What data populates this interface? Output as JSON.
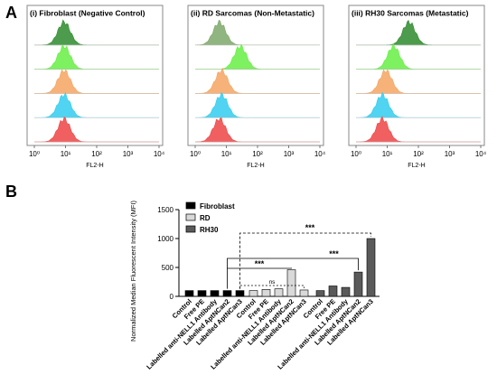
{
  "panels": {
    "a_letter": "A",
    "b_letter": "B"
  },
  "chart_data": [
    {
      "type": "histogram",
      "title": "(i) Fibroblast (Negative Control)",
      "xlabel": "FL2-H",
      "x_scale": "log",
      "xlim": [
        1,
        10000
      ],
      "x_tick_labels": [
        "10⁰",
        "10¹",
        "10²",
        "10³",
        "10⁴"
      ],
      "series": [
        {
          "color": "#2e8b2e",
          "peak": 9
        },
        {
          "color": "#66ee44",
          "peak": 9
        },
        {
          "color": "#f4a460",
          "peak": 9
        },
        {
          "color": "#33ccee",
          "peak": 9
        },
        {
          "color": "#ee4444",
          "peak": 9
        }
      ]
    },
    {
      "type": "histogram",
      "title": "(ii) RD Sarcomas (Non-Metastatic)",
      "xlabel": "FL2-H",
      "x_scale": "log",
      "xlim": [
        1,
        10000
      ],
      "x_tick_labels": [
        "10⁰",
        "10¹",
        "10²",
        "10³",
        "10⁴"
      ],
      "series": [
        {
          "color": "#7ea86a",
          "peak": 6
        },
        {
          "color": "#66ee44",
          "peak": 28
        },
        {
          "color": "#f4a460",
          "peak": 7
        },
        {
          "color": "#33ccee",
          "peak": 7
        },
        {
          "color": "#ee4444",
          "peak": 6
        }
      ]
    },
    {
      "type": "histogram",
      "title": "(iii) RH30 Sarcomas (Metastatic)",
      "xlabel": "FL2-H",
      "x_scale": "log",
      "xlim": [
        1,
        10000
      ],
      "x_tick_labels": [
        "10⁰",
        "10¹",
        "10²",
        "10³",
        "10⁴"
      ],
      "series": [
        {
          "color": "#2e8b2e",
          "peak": 50
        },
        {
          "color": "#66ee44",
          "peak": 16
        },
        {
          "color": "#f4a460",
          "peak": 9
        },
        {
          "color": "#33ccee",
          "peak": 7
        },
        {
          "color": "#ee4444",
          "peak": 7
        }
      ]
    },
    {
      "type": "bar",
      "ylabel": "Normalized Median Fluorescent Intensity (MFI)",
      "ylim": [
        0,
        1500
      ],
      "y_ticks": [
        0,
        500,
        1000,
        1500
      ],
      "categories": [
        "Control",
        "Free PE",
        "Labelled anti-NELL1 Antibody",
        "Labelled AptNCan2",
        "Labelled AptNCan3"
      ],
      "series": [
        {
          "name": "Fibroblast",
          "color": "#000000",
          "values": [
            100,
            100,
            100,
            100,
            100
          ]
        },
        {
          "name": "RD",
          "color": "#d9d9d9",
          "values": [
            100,
            120,
            130,
            460,
            110
          ]
        },
        {
          "name": "RH30",
          "color": "#5a5a5a",
          "values": [
            100,
            180,
            155,
            420,
            1000
          ]
        }
      ],
      "legend_position": "top-left",
      "annotations": [
        "***",
        "ns",
        "***",
        "***"
      ]
    }
  ]
}
